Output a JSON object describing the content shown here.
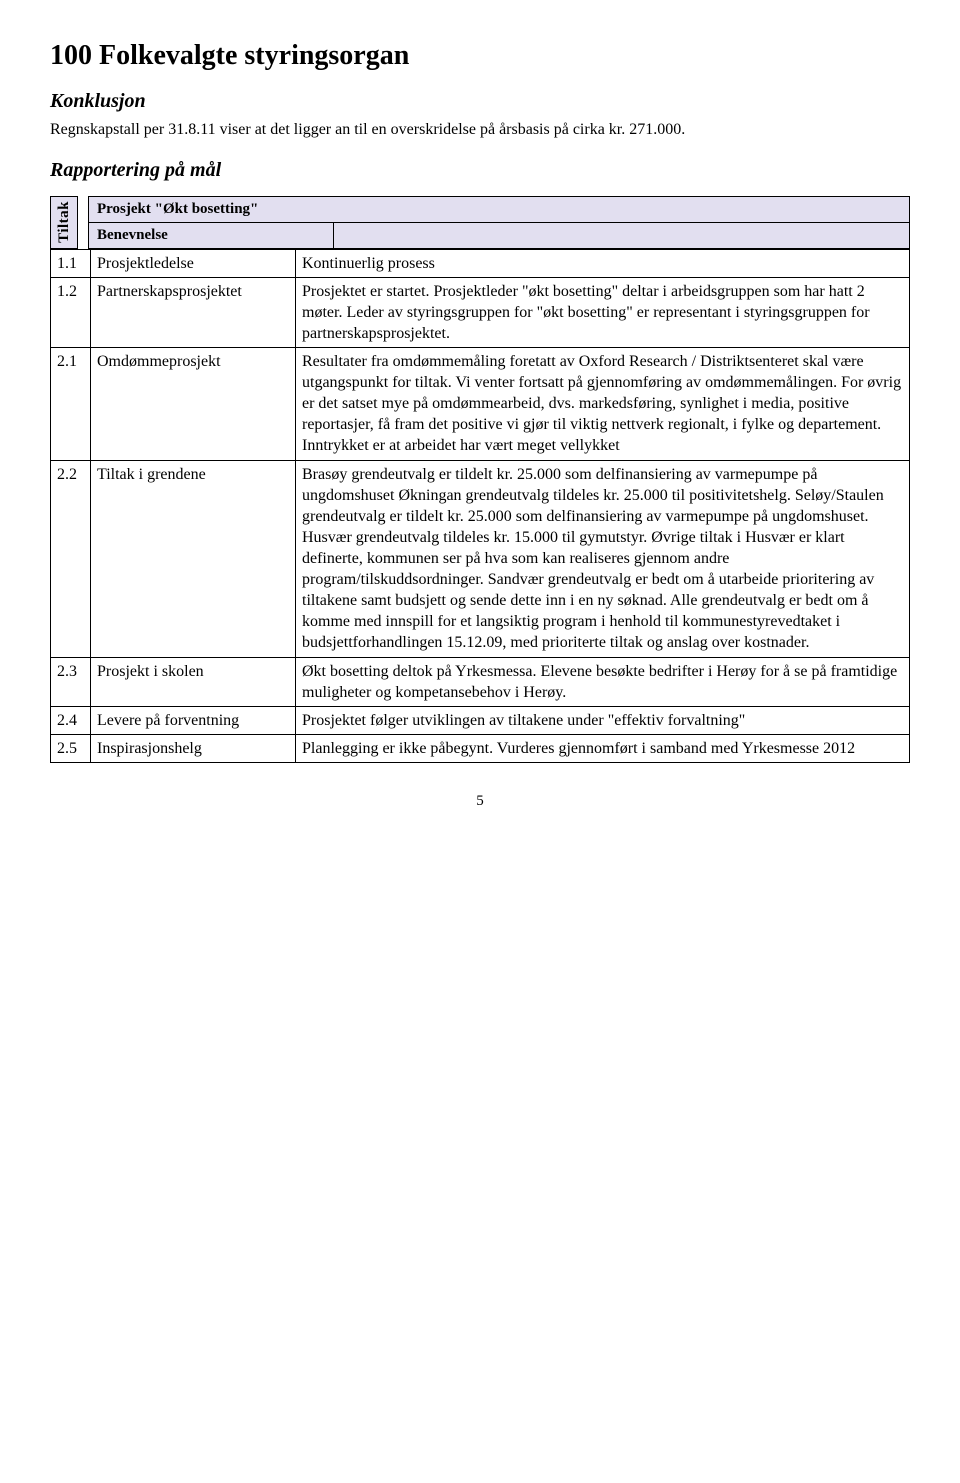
{
  "title": "100 Folkevalgte styringsorgan",
  "konklusjon_heading": "Konklusjon",
  "konklusjon_text": "Regnskapstall per 31.8.11 viser at det ligger an til en overskridelse på årsbasis på cirka kr. 271.000.",
  "rapportering_heading": "Rapportering på mål",
  "tiltak_label": "Tiltak",
  "project_header": "Prosjekt \"Økt bosetting\"",
  "benevnelse_label": "Benevnelse",
  "colors": {
    "header_bg": "#e2dff0",
    "border": "#000000",
    "text": "#000000",
    "page_bg": "#ffffff"
  },
  "fonts": {
    "body_family": "Times New Roman",
    "h1_size_pt": 21,
    "h2_size_pt": 15,
    "body_size_pt": 12
  },
  "rows": [
    {
      "num": "1.1",
      "name": "Prosjektledelse",
      "desc": "Kontinuerlig prosess"
    },
    {
      "num": "1.2",
      "name": "Partnerskapsprosjektet",
      "desc": "Prosjektet er startet. Prosjektleder \"økt bosetting\" deltar i arbeidsgruppen som har hatt 2 møter. Leder av styringsgruppen for \"økt bosetting\" er representant i styringsgruppen for partnerskapsprosjektet."
    },
    {
      "num": "2.1",
      "name": "Omdømmeprosjekt",
      "desc": "Resultater fra omdømmemåling foretatt av Oxford Research / Distriktsenteret skal være utgangspunkt for tiltak. Vi venter fortsatt på gjennomføring av omdømmemålingen. For øvrig er det satset mye på omdømmearbeid, dvs. markedsføring, synlighet i media, positive reportasjer, få fram det positive vi gjør til viktig nettverk regionalt, i fylke og departement. Inntrykket er at arbeidet har vært meget vellykket"
    },
    {
      "num": "2.2",
      "name": "Tiltak i grendene",
      "desc": "Brasøy grendeutvalg er tildelt kr. 25.000 som delfinansiering av varmepumpe på ungdomshuset Økningan grendeutvalg tildeles kr. 25.000 til positivitetshelg. Seløy/Staulen grendeutvalg er tildelt kr. 25.000 som delfinansiering av varmepumpe på ungdomshuset. Husvær grendeutvalg tildeles kr. 15.000 til gymutstyr. Øvrige tiltak i Husvær er klart definerte, kommunen ser på hva som kan realiseres gjennom andre program/tilskuddsordninger. Sandvær grendeutvalg er bedt om å utarbeide prioritering av tiltakene samt budsjett og sende dette inn i en ny søknad. Alle grendeutvalg er bedt om å komme med innspill for et langsiktig program i henhold til kommunestyrevedtaket i budsjettforhandlingen 15.12.09, med prioriterte tiltak og anslag over kostnader."
    },
    {
      "num": "2.3",
      "name": "Prosjekt i skolen",
      "desc": "Økt bosetting deltok på Yrkesmessa. Elevene besøkte bedrifter i Herøy for å se på framtidige muligheter og kompetansebehov i Herøy."
    },
    {
      "num": "2.4",
      "name": "Levere på forventning",
      "desc": "Prosjektet følger utviklingen av tiltakene under \"effektiv forvaltning\""
    },
    {
      "num": "2.5",
      "name": "Inspirasjonshelg",
      "desc": "Planlegging er ikke påbegynt. Vurderes gjennomført i samband med Yrkesmesse 2012"
    }
  ],
  "page_number": "5"
}
